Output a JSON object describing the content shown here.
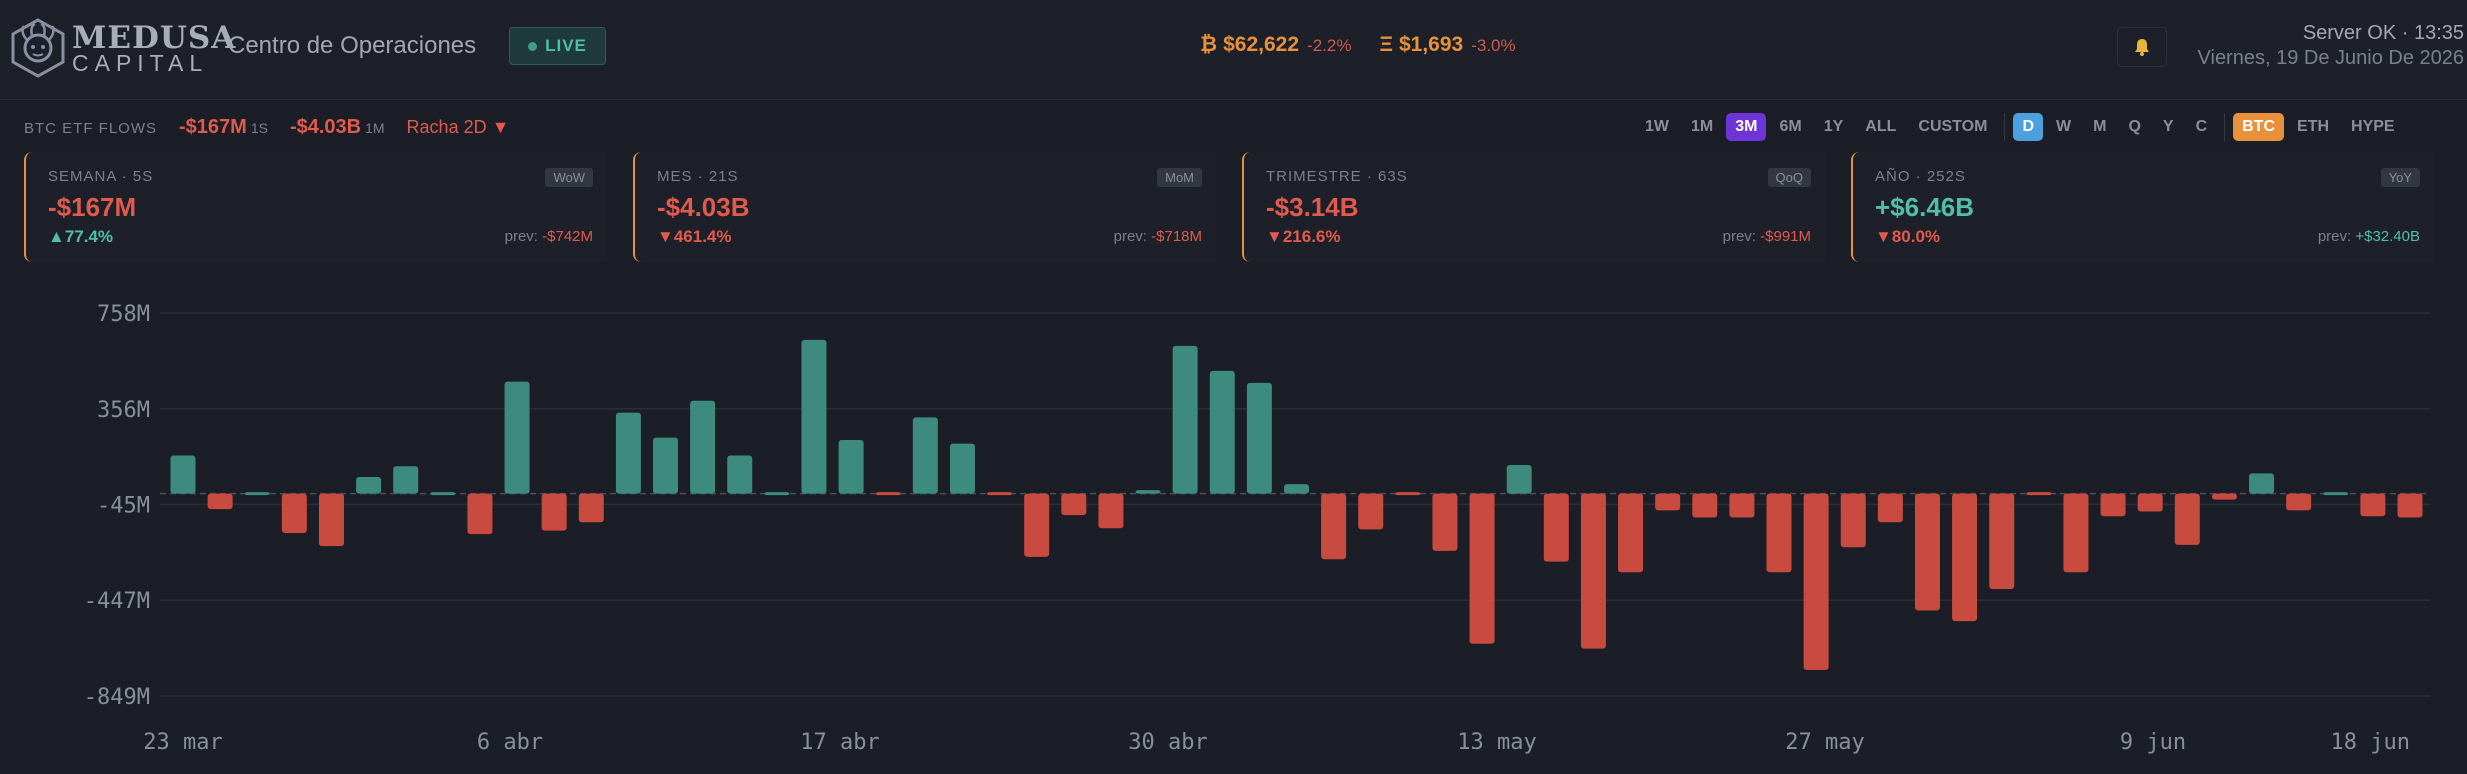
{
  "header": {
    "brand_top": "MEDUSA",
    "brand_bottom": "CAPITAL",
    "app_title": "Centro de Operaciones",
    "live_label": "LIVE",
    "tickers": [
      {
        "symbol": "₿",
        "price": "$62,622",
        "change": "-2.2%"
      },
      {
        "symbol": "Ξ",
        "price": "$1,693",
        "change": "-3.0%"
      }
    ],
    "notification_icon": "bell-icon",
    "status": "Server OK · 13:35",
    "date": "Viernes, 19 De Junio De 2026"
  },
  "flows": {
    "label": "BTC ETF FLOWS",
    "week_value": "-$167M",
    "week_unit": "1S",
    "month_value": "-$4.03B",
    "month_unit": "1M",
    "streak": "Racha 2D ▼"
  },
  "controls": {
    "ranges": [
      "1W",
      "1M",
      "3M",
      "6M",
      "1Y",
      "ALL",
      "CUSTOM"
    ],
    "selected_range": "3M",
    "granularity": [
      "D",
      "W",
      "M",
      "Q",
      "Y",
      "C"
    ],
    "selected_granularity": "D",
    "assets": [
      "BTC",
      "ETH",
      "HYPE"
    ],
    "selected_asset": "BTC"
  },
  "cards": [
    {
      "header": "SEMANA · 5S",
      "tag": "WoW",
      "value": "-$167M",
      "delta": "▲77.4%",
      "prev_label": "prev:",
      "prev_value": "-$742M",
      "value_sign": "neg",
      "delta_sign": "pos",
      "prev_sign": "neg"
    },
    {
      "header": "MES · 21S",
      "tag": "MoM",
      "value": "-$4.03B",
      "delta": "▼461.4%",
      "prev_label": "prev:",
      "prev_value": "-$718M",
      "value_sign": "neg",
      "delta_sign": "neg",
      "prev_sign": "neg"
    },
    {
      "header": "TRIMESTRE · 63S",
      "tag": "QoQ",
      "value": "-$3.14B",
      "delta": "▼216.6%",
      "prev_label": "prev:",
      "prev_value": "-$991M",
      "value_sign": "neg",
      "delta_sign": "neg",
      "prev_sign": "neg"
    },
    {
      "header": "AÑO · 252S",
      "tag": "YoY",
      "value": "+$6.46B",
      "delta": "▼80.0%",
      "prev_label": "prev:",
      "prev_value": "+$32.40B",
      "value_sign": "pos",
      "delta_sign": "neg",
      "prev_sign": "pos"
    }
  ],
  "colors": {
    "positive": "#3d8a7e",
    "negative": "#c94a3f",
    "accent": "#e8913a",
    "grid": "#2a2e38"
  },
  "chart_data": {
    "type": "bar",
    "y_ticks": [
      "758M",
      "356M",
      "-45M",
      "-447M",
      "-849M"
    ],
    "y_tick_values": [
      758,
      356,
      -45,
      -447,
      -849
    ],
    "x_ticks": [
      "23 mar",
      "6 abr",
      "17 abr",
      "30 abr",
      "13 may",
      "27 may",
      "9 jun",
      "18 jun"
    ],
    "ylim": [
      -849,
      758
    ],
    "grid": true,
    "series": [
      {
        "unit": "M",
        "values": [
          160,
          -65,
          8,
          -165,
          -220,
          70,
          115,
          5,
          -170,
          470,
          -155,
          -120,
          340,
          235,
          390,
          160,
          8,
          645,
          225,
          -10,
          320,
          210,
          -5,
          -265,
          -90,
          -145,
          15,
          620,
          515,
          465,
          40,
          -275,
          -150,
          -5,
          -240,
          -630,
          120,
          -285,
          -650,
          -330,
          -70,
          -100,
          -100,
          -330,
          -740,
          -225,
          -120,
          -490,
          -535,
          -400,
          -10,
          -330,
          -95,
          -75,
          -215,
          -25,
          85,
          -70,
          5,
          -95,
          -100
        ]
      }
    ]
  }
}
